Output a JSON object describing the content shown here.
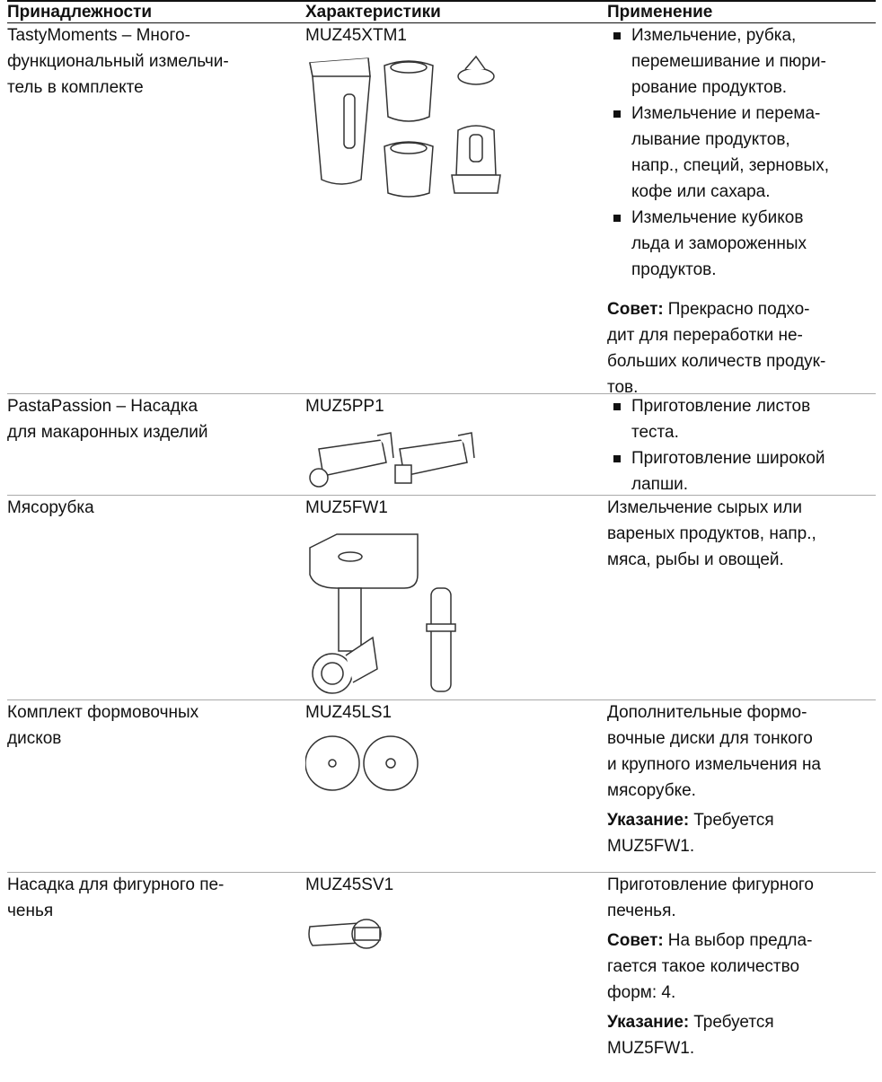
{
  "table": {
    "headers": [
      "Принадлежности",
      "Характеристики",
      "Применение"
    ],
    "rows": [
      {
        "accessory": [
          "TastyMoments – Много-",
          "функциональный измельчи-",
          "тель в комплекте"
        ],
        "model": "MUZ45XTM1",
        "usage": {
          "bullets": [
            [
              "Измельчение, рубка,",
              "перемешивание и пюри-",
              "рование продуктов."
            ],
            [
              "Измельчение и перема-",
              "лывание продуктов,",
              "напр., специй, зерновых,",
              "кофе или сахара."
            ],
            [
              "Измельчение кубиков",
              "льда и замороженных",
              "продуктов."
            ]
          ],
          "notes": [
            {
              "label": "Совет:",
              "lines": [
                "Прекрасно подхо-",
                "дит для переработки не-",
                "больших количеств продук-",
                "тов."
              ]
            }
          ]
        }
      },
      {
        "accessory": [
          "PastaPassion – Насадка",
          "для макаронных изделий"
        ],
        "model": "MUZ5PP1",
        "usage": {
          "bullets": [
            [
              "Приготовление листов",
              "теста."
            ],
            [
              "Приготовление широкой",
              "лапши."
            ]
          ]
        }
      },
      {
        "accessory": [
          "Мясорубка"
        ],
        "model": "MUZ5FW1",
        "usage": {
          "text": [
            "Измельчение сырых или",
            "вареных продуктов, напр.,",
            "мяса, рыбы и овощей."
          ]
        }
      },
      {
        "accessory": [
          "Комплект формовочных",
          "дисков"
        ],
        "model": "MUZ45LS1",
        "usage": {
          "text": [
            "Дополнительные формо-",
            "вочные диски для тонкого",
            "и крупного измельчения на",
            "мясорубке."
          ],
          "notes": [
            {
              "label": "Указание:",
              "lines": [
                "Требуется",
                "MUZ5FW1."
              ]
            }
          ]
        }
      },
      {
        "accessory": [
          "Насадка для фигурного пе-",
          "ченья"
        ],
        "model": "MUZ45SV1",
        "usage": {
          "text": [
            "Приготовление фигурного",
            "печенья."
          ],
          "notes": [
            {
              "label": "Совет:",
              "lines": [
                "На выбор предла-",
                "гается такое количество",
                "форм: 4."
              ]
            },
            {
              "label": "Указание:",
              "lines": [
                "Требуется",
                "MUZ5FW1."
              ]
            }
          ]
        }
      }
    ]
  }
}
